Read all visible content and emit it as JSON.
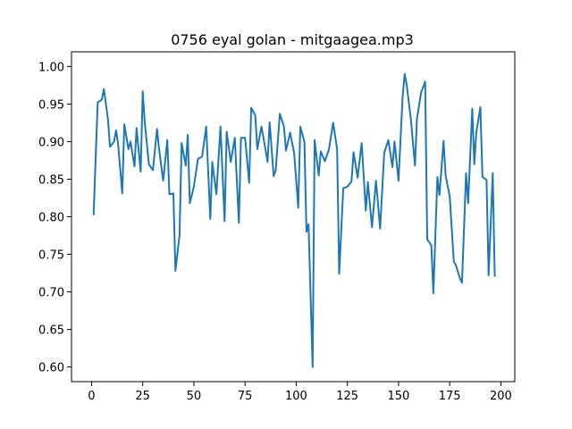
{
  "chart_data": {
    "type": "line",
    "title": "0756 eyal golan - mitgaagea.mp3",
    "xlabel": "",
    "ylabel": "",
    "xlim": [
      -9.8,
      206.8
    ],
    "ylim": [
      0.5805,
      1.0195
    ],
    "xticks": [
      0,
      25,
      50,
      75,
      100,
      125,
      150,
      175,
      200
    ],
    "xtick_labels": [
      "0",
      "25",
      "50",
      "75",
      "100",
      "125",
      "150",
      "175",
      "200"
    ],
    "yticks": [
      0.6,
      0.65,
      0.7,
      0.75,
      0.8,
      0.85,
      0.9,
      0.95,
      1.0
    ],
    "ytick_labels": [
      "0.60",
      "0.65",
      "0.70",
      "0.75",
      "0.80",
      "0.85",
      "0.90",
      "0.95",
      "1.00"
    ],
    "grid": false,
    "line_color": "#1f77b4",
    "series": [
      {
        "x": [
          1,
          3,
          5,
          6,
          8,
          9,
          11,
          12,
          13,
          15,
          16,
          18,
          19,
          21,
          22,
          24,
          25,
          26,
          28,
          30,
          32,
          33,
          35,
          37,
          38,
          40,
          41,
          43,
          44,
          46,
          47,
          48,
          50,
          52,
          54,
          56,
          58,
          59,
          61,
          63,
          65,
          66,
          68,
          70,
          72,
          73,
          75,
          77,
          78,
          80,
          81,
          83,
          84,
          86,
          87,
          89,
          90,
          92,
          94,
          95,
          97,
          99,
          101,
          102,
          104,
          105,
          106,
          108,
          109,
          111,
          112,
          114,
          116,
          118,
          120,
          121,
          123,
          125,
          127,
          128,
          130,
          132,
          134,
          135,
          137,
          139,
          141,
          143,
          145,
          147,
          148,
          150,
          152,
          153,
          154,
          156,
          158,
          159,
          161,
          163,
          164,
          166,
          167,
          169,
          170,
          172,
          173,
          175,
          177,
          178,
          180,
          181,
          183,
          184,
          186,
          187,
          188,
          190,
          191,
          193,
          194,
          196,
          197
        ],
        "values": [
          0.802,
          0.952,
          0.956,
          0.97,
          0.93,
          0.893,
          0.9,
          0.915,
          0.896,
          0.831,
          0.923,
          0.89,
          0.9,
          0.867,
          0.918,
          0.86,
          0.967,
          0.925,
          0.87,
          0.862,
          0.917,
          0.89,
          0.848,
          0.902,
          0.83,
          0.831,
          0.728,
          0.776,
          0.898,
          0.868,
          0.909,
          0.818,
          0.84,
          0.877,
          0.88,
          0.92,
          0.797,
          0.873,
          0.83,
          0.92,
          0.794,
          0.913,
          0.873,
          0.905,
          0.792,
          0.905,
          0.905,
          0.845,
          0.945,
          0.935,
          0.89,
          0.92,
          0.905,
          0.873,
          0.926,
          0.854,
          0.862,
          0.937,
          0.92,
          0.888,
          0.912,
          0.885,
          0.812,
          0.92,
          0.9,
          0.78,
          0.79,
          0.6,
          0.902,
          0.855,
          0.887,
          0.874,
          0.89,
          0.925,
          0.89,
          0.724,
          0.838,
          0.84,
          0.847,
          0.886,
          0.852,
          0.898,
          0.808,
          0.846,
          0.786,
          0.848,
          0.784,
          0.885,
          0.902,
          0.866,
          0.9,
          0.848,
          0.96,
          0.99,
          0.975,
          0.93,
          0.868,
          0.93,
          0.965,
          0.98,
          0.77,
          0.762,
          0.698,
          0.853,
          0.829,
          0.901,
          0.855,
          0.827,
          0.74,
          0.736,
          0.718,
          0.712,
          0.858,
          0.818,
          0.944,
          0.87,
          0.912,
          0.946,
          0.853,
          0.849,
          0.722,
          0.858,
          0.72
        ]
      }
    ]
  }
}
